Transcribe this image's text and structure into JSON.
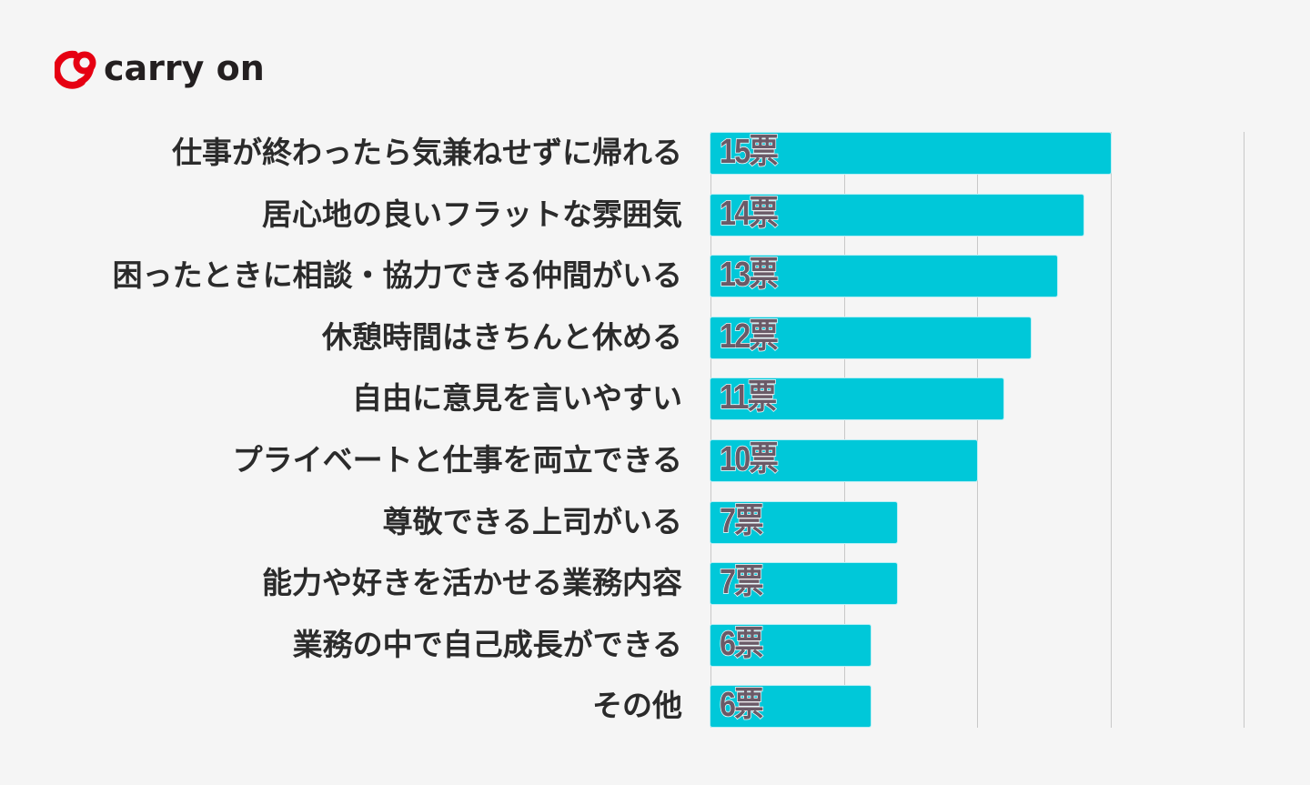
{
  "logo": {
    "text": "carry on",
    "brand_color": "#e60012"
  },
  "chart_data": {
    "type": "bar",
    "orientation": "horizontal",
    "categories": [
      "仕事が終わったら気兼ねせずに帰れる",
      "居心地の良いフラットな雰囲気",
      "困ったときに相談・協力できる仲間がいる",
      "休憩時間はきちんと休める",
      "自由に意見を言いやすい",
      "プライベートと仕事を両立できる",
      "尊敬できる上司がいる",
      "能力や好きを活かせる業務内容",
      "業務の中で自己成長ができる",
      "その他"
    ],
    "values": [
      15,
      14,
      13,
      12,
      11,
      10,
      7,
      7,
      6,
      6
    ],
    "value_labels": [
      "15票",
      "14票",
      "13票",
      "12票",
      "11票",
      "10票",
      "7票",
      "7票",
      "6票",
      "6票"
    ],
    "unit": "票",
    "xlim": [
      0,
      20
    ],
    "grid_step": 5,
    "grid": true,
    "bar_color": "#00c8d9",
    "title": "",
    "xlabel": "",
    "ylabel": ""
  }
}
